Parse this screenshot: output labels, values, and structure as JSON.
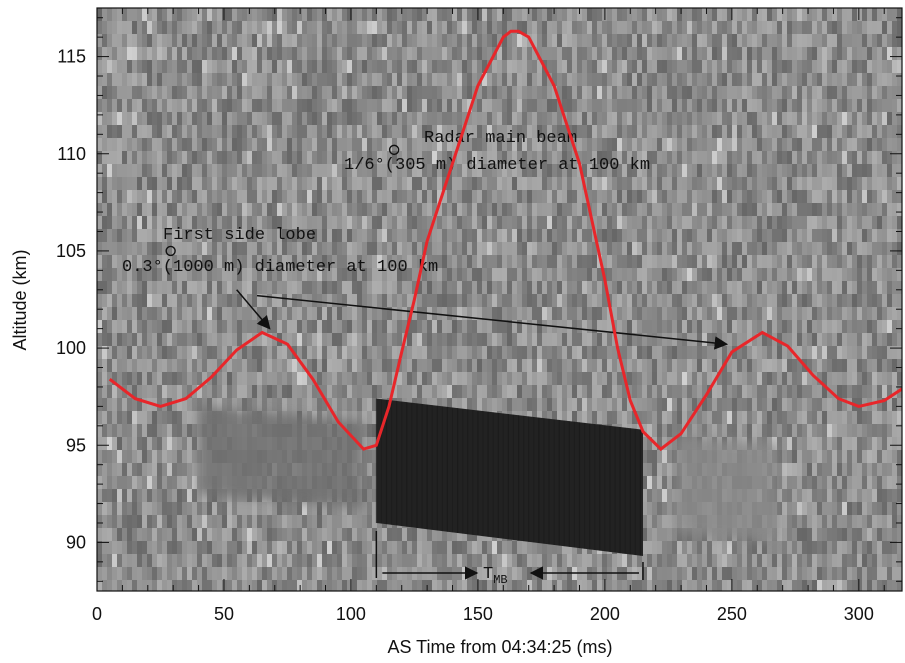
{
  "chart_data": {
    "type": "line",
    "xlabel": "AS Time from 04:34:25 (ms)",
    "ylabel": "Altitude (km)",
    "xlim": [
      0,
      317
    ],
    "ylim": [
      87.5,
      117.5
    ],
    "x_ticks": [
      0,
      50,
      100,
      150,
      200,
      250,
      300
    ],
    "y_ticks": [
      90,
      95,
      100,
      105,
      110,
      115
    ],
    "grid": false,
    "background": "grayscale noise image (echo intensity)",
    "series": [
      {
        "name": "",
        "color": "#e8262a",
        "points": [
          [
            5,
            98.4
          ],
          [
            15,
            97.4
          ],
          [
            25,
            97.0
          ],
          [
            35,
            97.4
          ],
          [
            45,
            98.5
          ],
          [
            55,
            99.9
          ],
          [
            65,
            100.8
          ],
          [
            75,
            100.2
          ],
          [
            85,
            98.4
          ],
          [
            95,
            96.2
          ],
          [
            105,
            94.8
          ],
          [
            110,
            95.0
          ],
          [
            115,
            97.0
          ],
          [
            120,
            99.8
          ],
          [
            125,
            102.5
          ],
          [
            130,
            105.5
          ],
          [
            140,
            109.5
          ],
          [
            150,
            113.5
          ],
          [
            160,
            116.0
          ],
          [
            163,
            116.3
          ],
          [
            166,
            116.3
          ],
          [
            170,
            116.0
          ],
          [
            180,
            113.5
          ],
          [
            190,
            109.5
          ],
          [
            200,
            103.5
          ],
          [
            205,
            100.0
          ],
          [
            210,
            97.3
          ],
          [
            215,
            95.7
          ],
          [
            222,
            94.8
          ],
          [
            230,
            95.6
          ],
          [
            240,
            97.6
          ],
          [
            250,
            99.8
          ],
          [
            262,
            100.8
          ],
          [
            272,
            100.1
          ],
          [
            282,
            98.6
          ],
          [
            292,
            97.4
          ],
          [
            300,
            97.0
          ],
          [
            310,
            97.3
          ],
          [
            317,
            97.9
          ]
        ]
      }
    ],
    "annotations": [
      {
        "text": "Radar main beam",
        "x": 117,
        "y": 110.2,
        "marker": "circle"
      },
      {
        "text": "1/6°(305 m) diameter at 100 km"
      },
      {
        "text": "First side lobe",
        "x": 29,
        "y": 105.0,
        "marker": "circle"
      },
      {
        "text": "0.3°(1000 m) diameter at 100 km"
      },
      {
        "text": "T",
        "subscript": "MB"
      }
    ],
    "range_marker": {
      "x_start": 110,
      "x_end": 215
    },
    "arrows": [
      {
        "from": [
          55,
          103
        ],
        "to": [
          68,
          101
        ]
      },
      {
        "from": [
          63,
          102.7
        ],
        "to": [
          248,
          100.2
        ]
      }
    ],
    "echo_regions": [
      {
        "shade": "#222222",
        "polygon": [
          [
            110,
            97.4
          ],
          [
            215,
            95.8
          ],
          [
            215,
            89.3
          ],
          [
            110,
            91.0
          ]
        ]
      },
      {
        "shade": "#6f6f6f",
        "polygon": [
          [
            40,
            97.0
          ],
          [
            105,
            96.2
          ],
          [
            105,
            91.8
          ],
          [
            40,
            92.5
          ]
        ]
      },
      {
        "shade": "#8a8a8a",
        "polygon": [
          [
            228,
            95.5
          ],
          [
            268,
            95.0
          ],
          [
            268,
            90.0
          ],
          [
            228,
            90.5
          ]
        ]
      }
    ]
  }
}
